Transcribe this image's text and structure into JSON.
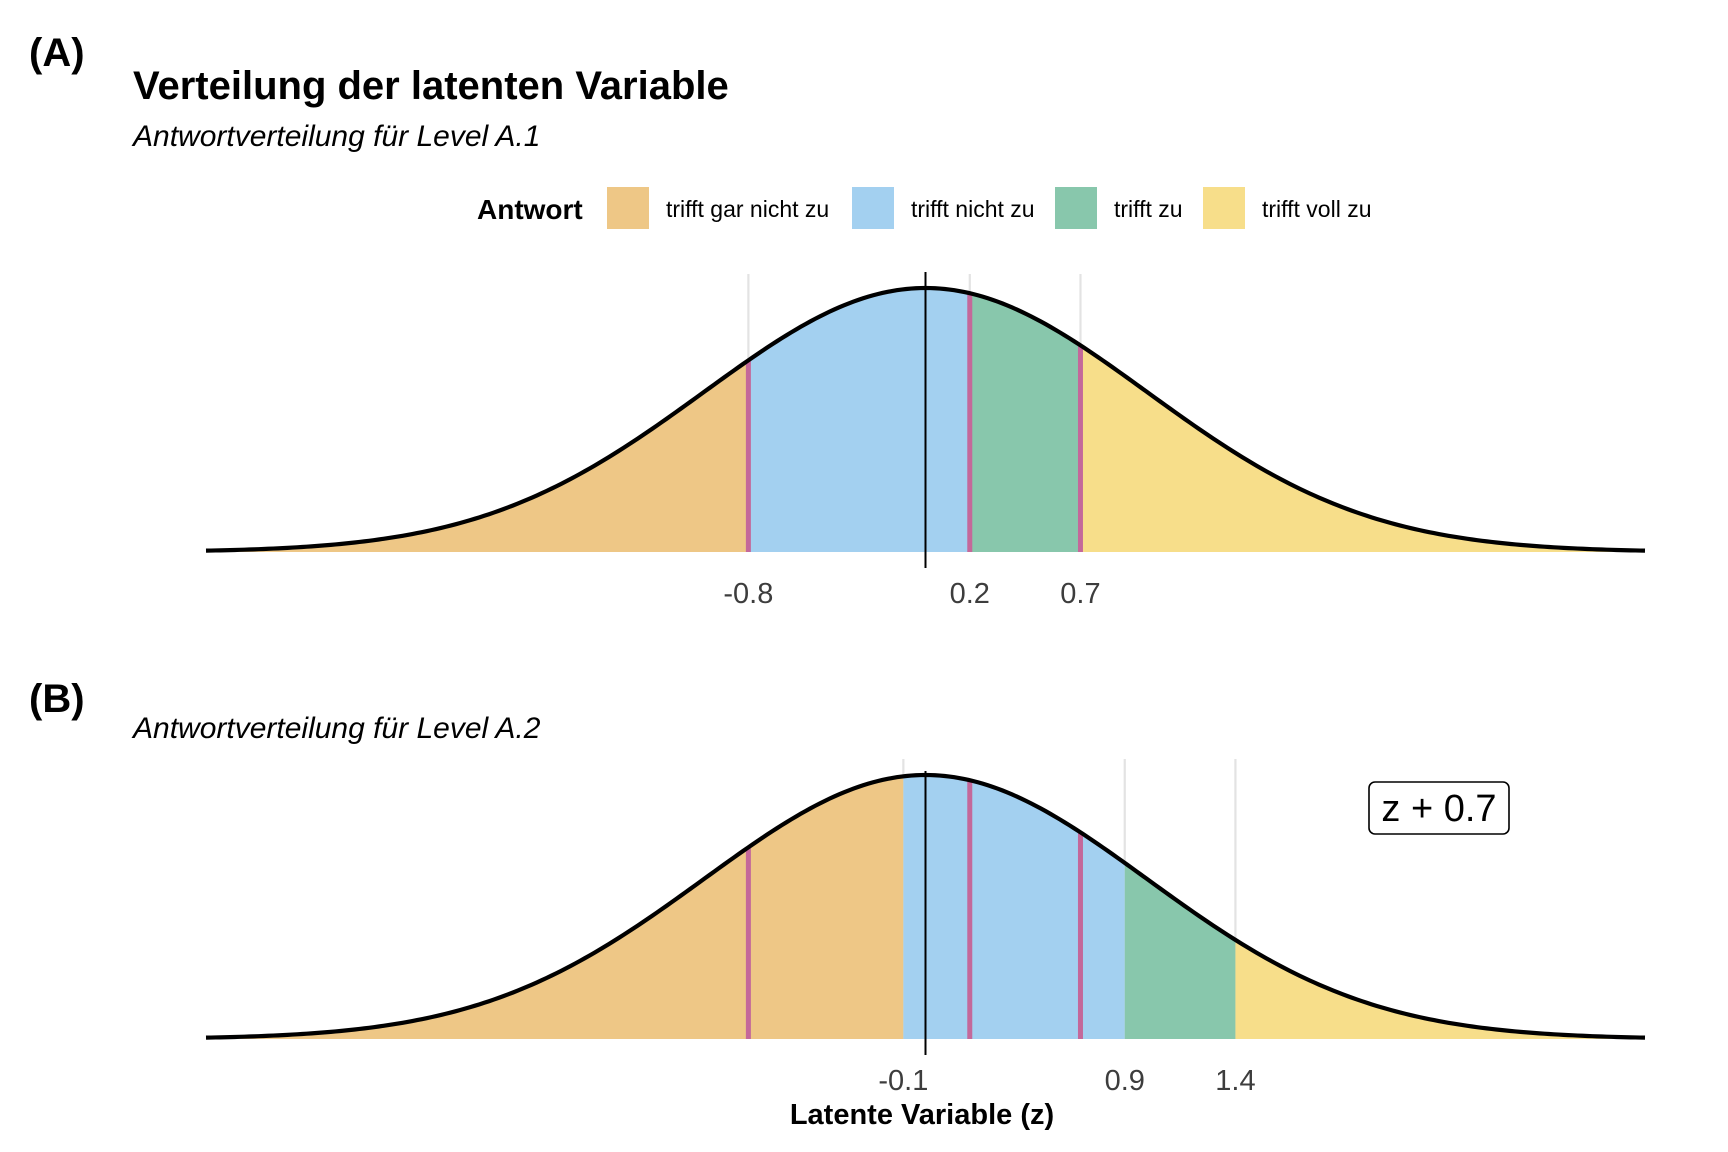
{
  "chart_data": {
    "type": "area",
    "title": "Verteilung der latenten Variable",
    "xlabel": "Latente Variable (z)",
    "ylabel": "",
    "grid": false,
    "distribution": "standard normal density",
    "legend": {
      "title": "Antwort",
      "position": "top",
      "items": [
        {
          "label": "trifft gar nicht zu",
          "color": "#EEC786"
        },
        {
          "label": "trifft nicht zu",
          "color": "#A3D0F0"
        },
        {
          "label": "trifft zu",
          "color": "#88C7AC"
        },
        {
          "label": "trifft voll zu",
          "color": "#F7DE8A"
        }
      ]
    },
    "panels": [
      {
        "tag": "(A)",
        "subtitle": "Antwortverteilung für Level A.1",
        "thresholds": [
          -0.8,
          0.2,
          0.7
        ],
        "tick_labels": [
          "-0.8",
          "0.2",
          "0.7"
        ],
        "marked_positions": [
          -0.8,
          0.2,
          0.7
        ],
        "annotation": ""
      },
      {
        "tag": "(B)",
        "subtitle": "Antwortverteilung für Level A.2",
        "thresholds": [
          -0.1,
          0.9,
          1.4
        ],
        "tick_labels": [
          "-0.1",
          "0.9",
          "1.4"
        ],
        "marked_positions": [
          -0.8,
          0.2,
          0.7
        ],
        "annotation": "z + 0.7"
      }
    ],
    "xlim": [
      -3.25,
      3.25
    ],
    "ylim": [
      0,
      0.4
    ],
    "colors": {
      "curve": "#000000",
      "threshold_marker": "#C4689A",
      "gridline": "#E3E3E3"
    }
  }
}
